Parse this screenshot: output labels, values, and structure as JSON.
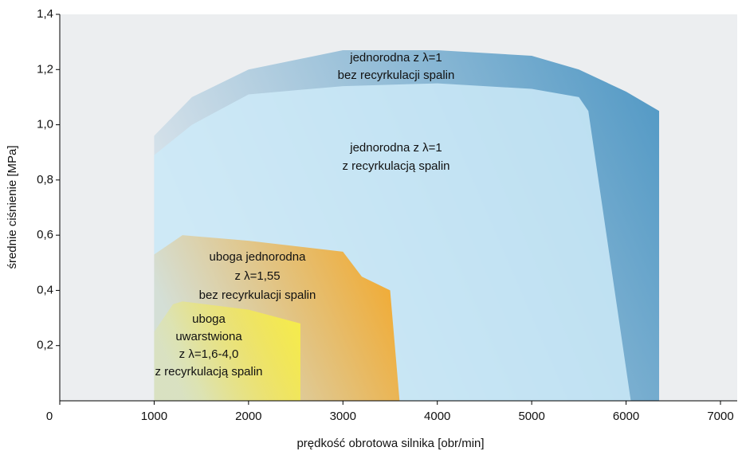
{
  "chart_data": {
    "type": "area",
    "x_label": "prędkość obrotowa silnika [obr/min]",
    "y_label": "średnie ciśnienie [MPa]",
    "xlim": [
      0,
      7000
    ],
    "xticks": [
      0,
      1000,
      2000,
      3000,
      4000,
      5000,
      6000,
      7000
    ],
    "ylim": [
      0,
      1.4
    ],
    "yticks": [
      {
        "value": 0.2,
        "label": "0,2"
      },
      {
        "value": 0.4,
        "label": "0,4"
      },
      {
        "value": 0.6,
        "label": "0,6"
      },
      {
        "value": 0.8,
        "label": "0,8"
      },
      {
        "value": 1.0,
        "label": "1,0"
      },
      {
        "value": 1.2,
        "label": "1,2"
      },
      {
        "value": 1.4,
        "label": "1,4"
      }
    ],
    "series": [
      {
        "color": "#4f97c4",
        "x": [
          1000,
          1000,
          1400,
          2000,
          3000,
          4000,
          5000,
          5500,
          6000,
          6350,
          6350
        ],
        "values": [
          0,
          0.96,
          1.1,
          1.2,
          1.27,
          1.27,
          1.25,
          1.2,
          1.12,
          1.05,
          0
        ]
      },
      {
        "color": "#cdeaf8",
        "x": [
          1000,
          1000,
          1400,
          2000,
          3000,
          4000,
          5000,
          5500,
          5600,
          6050
        ],
        "values": [
          0,
          0.89,
          1.0,
          1.11,
          1.14,
          1.15,
          1.13,
          1.1,
          1.05,
          0
        ]
      },
      {
        "color": "#f5a623",
        "x": [
          1000,
          1000,
          1300,
          2000,
          3000,
          3200,
          3500,
          3600
        ],
        "values": [
          0,
          0.53,
          0.6,
          0.58,
          0.54,
          0.45,
          0.4,
          0
        ]
      },
      {
        "color": "#f6ee4a",
        "x": [
          1000,
          1000,
          1200,
          1300,
          2000,
          2550,
          2550
        ],
        "values": [
          0,
          0.25,
          0.35,
          0.36,
          0.33,
          0.28,
          0
        ]
      }
    ],
    "annotations": [
      {
        "lines": [
          "jednorodna z λ=1",
          "bez recyrkulacji spalin"
        ]
      },
      {
        "lines": [
          "jednorodna z λ=1",
          "z recyrkulacją spalin"
        ]
      },
      {
        "lines": [
          "uboga jednorodna",
          "z λ=1,55",
          "bez recyrkulacji spalin"
        ]
      },
      {
        "lines": [
          "uboga",
          "uwarstwiona",
          "z λ=1,6-4,0",
          "z recyrkulacją spalin"
        ]
      }
    ]
  }
}
